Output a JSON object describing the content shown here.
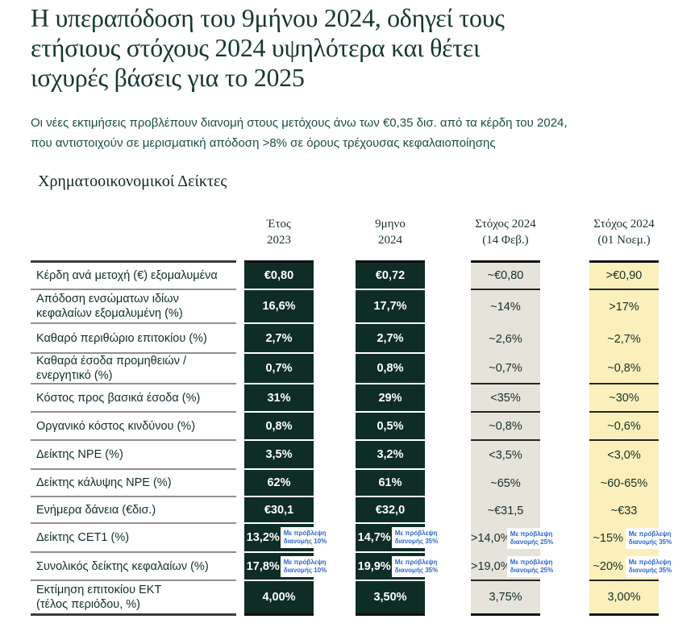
{
  "title": {
    "full": "Η υπεραπόδοση του 9μήνου 2024, οδηγεί τους ετήσιους στόχους 2024 υψηλότερα και θέτει ισχυρές βάσεις για το 2025",
    "lines": [
      "Η υπεραπόδοση του 9μήνου 2024, οδηγεί τους",
      "ετήσιους στόχους 2024 υψηλότερα και θέτει",
      "ισχυρές βάσεις για το 2025"
    ]
  },
  "subtitle": {
    "full": "Οι νέες εκτιμήσεις προβλέπουν διανομή στους μετόχους άνω των €0,35 δισ. από τα κέρδη του 2024, που αντιστοιχούν σε μερισματική απόδοση >8% σε όρους τρέχουσας κεφαλαιοποίησης",
    "lines": [
      "Οι νέες εκτιμήσεις προβλέπουν διανομή στους μετόχους άνω των €0,35 δισ. από τα κέρδη του 2024,",
      "που αντιστοιχούν σε μερισματική απόδοση >8% σε όρους τρέχουσας κεφαλαιοποίησης"
    ]
  },
  "section_heading": "Χρηματοοικονομικοί Δείκτες",
  "colors": {
    "title_color": "#17382f",
    "subtitle_color": "#1a4e3f",
    "label_color": "#10302a",
    "dark_cell_bg": "#0e2d26",
    "gray_cell_bg": "#e6e3da",
    "yellow_cell_bg": "#fbf0bc",
    "value_dark_color": "#16302a",
    "note_color": "#2f67cc"
  },
  "table": {
    "columns": [
      {
        "line1": "Έτος",
        "line2": "2023",
        "style": "dark"
      },
      {
        "line1": "9μηνο",
        "line2": "2024",
        "style": "dark"
      },
      {
        "line1": "Στόχος 2024",
        "line2": "(14 Φεβ.)",
        "style": "gray"
      },
      {
        "line1": "Στόχος 2024",
        "line2": "(01 Νοεμ.)",
        "style": "yellow"
      }
    ],
    "rows": [
      {
        "label": "Κέρδη ανά μετοχή (€) εξομαλυμένα",
        "values": [
          "€0,80",
          "€0,72",
          "~€0,80",
          ">€0,90"
        ],
        "notes": null,
        "divider_after": true
      },
      {
        "label": "Απόδοση ενσώματων ιδίων\nκεφαλαίων εξομαλυμένη (%)",
        "values": [
          "16,6%",
          "17,7%",
          "~14%",
          ">17%"
        ],
        "notes": null,
        "divider_after": false
      },
      {
        "label": "Καθαρό περιθώριο επιτοκίου (%)",
        "values": [
          "2,7%",
          "2,7%",
          "~2,6%",
          "~2,7%"
        ],
        "notes": null,
        "divider_after": false
      },
      {
        "label": "Καθαρά έσοδα προμηθειών /\nενεργητικό (%)",
        "values": [
          "0,7%",
          "0,8%",
          "~0,7%",
          "~0,8%"
        ],
        "notes": null,
        "divider_after": true
      },
      {
        "label": "Κόστος προς βασικά έσοδα (%)",
        "values": [
          "31%",
          "29%",
          "<35%",
          "~30%"
        ],
        "notes": null,
        "divider_after": true
      },
      {
        "label": "Οργανικό κόστος κινδύνου (%)",
        "values": [
          "0,8%",
          "0,5%",
          "~0,8%",
          "~0,6%"
        ],
        "notes": null,
        "divider_after": true
      },
      {
        "label": "Δείκτης NPE (%)",
        "values": [
          "3,5%",
          "3,2%",
          "<3,5%",
          "<3,0%"
        ],
        "notes": null,
        "divider_after": false
      },
      {
        "label": "Δείκτης κάλυψης NPE (%)",
        "values": [
          "62%",
          "61%",
          "~65%",
          "~60-65%"
        ],
        "notes": null,
        "divider_after": false
      },
      {
        "label": "Ενήμερα δάνεια (€δισ.)",
        "values": [
          "€30,1",
          "€32,0",
          "~€31,5",
          "~€33"
        ],
        "notes": null,
        "divider_after": false
      },
      {
        "label": "Δείκτης CET1 (%)",
        "values": [
          "13,2%",
          "14,7%",
          ">14,0%",
          "~15%"
        ],
        "notes": [
          {
            "l1": "Με πρόβλεψη",
            "l2": "διανομής 10%"
          },
          {
            "l1": "Με πρόβλεψη",
            "l2": "διανομής 35%"
          },
          {
            "l1": "Με πρόβλεψη",
            "l2": "διανομής 25%"
          },
          {
            "l1": "Με πρόβλεψη",
            "l2": "διανομής 35%"
          }
        ],
        "divider_after": false
      },
      {
        "label": "Συνολικός δείκτης κεφαλαίων (%)",
        "values": [
          "17,8%",
          "19,9%",
          ">19,0%",
          "~20%"
        ],
        "notes": [
          {
            "l1": "Με πρόβλεψη",
            "l2": "διανομής 10%"
          },
          {
            "l1": "Με πρόβλεψη",
            "l2": "διανομής 35%"
          },
          {
            "l1": "Με πρόβλεψη",
            "l2": "διανομής 25%"
          },
          {
            "l1": "Με πρόβλεψη",
            "l2": "διανομής 35%"
          }
        ],
        "divider_after": true
      },
      {
        "label": "Εκτίμηση επιτοκίου ΕΚΤ\n(τέλος περιόδου, %)",
        "values": [
          "4,00%",
          "3,50%",
          "3,75%",
          "3,00%"
        ],
        "notes": null,
        "divider_after": false
      }
    ]
  }
}
